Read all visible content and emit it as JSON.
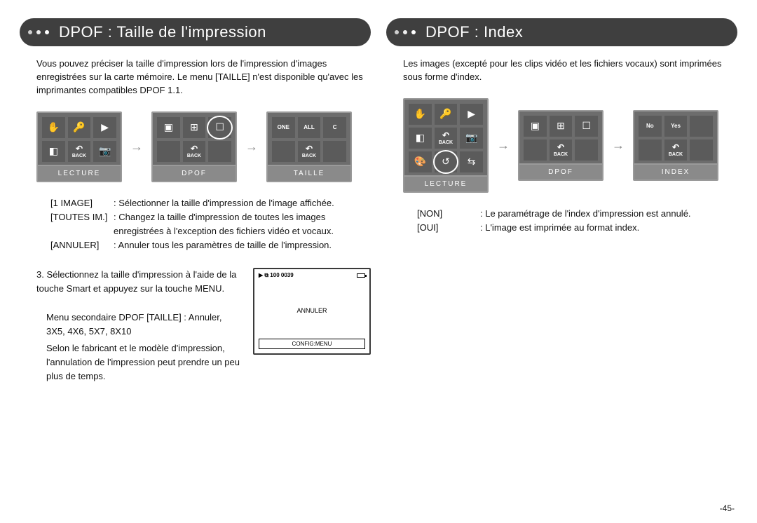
{
  "page_number": "-45-",
  "left": {
    "title": "DPOF : Taille de l'impression",
    "intro": "Vous pouvez préciser la taille d'impression lors de l'impression d'images enregistrées sur la carte mémoire. Le menu [TAILLE] n'est disponible qu'avec les imprimantes compatibles DPOF 1.1.",
    "screens": {
      "s1": {
        "label": "LECTURE",
        "cells": [
          "✋",
          "🔑",
          "▶",
          "◧",
          "BACK",
          "📷"
        ]
      },
      "s2": {
        "label": "DPOF",
        "cells": [
          "▣",
          "⊞",
          "☐",
          "",
          "BACK",
          ""
        ],
        "highlight": 2
      },
      "s3": {
        "label": "TAILLE",
        "cells": [
          "ONE",
          "ALL",
          "C",
          "",
          "BACK",
          ""
        ]
      }
    },
    "defs": [
      {
        "k": "[1 IMAGE]",
        "v": ": Sélectionner la taille d'impression de l'image affichée."
      },
      {
        "k": "[TOUTES IM.]",
        "v": ": Changez la taille d'impression de toutes les images enregistrées à l'exception des fichiers vidéo et vocaux."
      },
      {
        "k": "[ANNULER]",
        "v": ": Annuler tous les paramètres de taille de l'impression."
      }
    ],
    "step3": {
      "a": "3. Sélectionnez la taille d'impression à l'aide de la touche Smart et appuyez sur la touche MENU.",
      "b": "Menu secondaire DPOF [TAILLE] : Annuler, 3X5, 4X6, 5X7, 8X10",
      "c": "Selon le fabricant et le modèle d'impression, l'annulation de l'impression peut prendre un peu plus de temps."
    },
    "preview": {
      "top": "▶ ⧉ 100 0039",
      "mid": "ANNULER",
      "bot": "CONFIG:MENU"
    }
  },
  "right": {
    "title": "DPOF : Index",
    "intro": "Les images (excepté pour les clips vidéo et les fichiers vocaux) sont imprimées sous forme d'index.",
    "screens": {
      "s1": {
        "label": "LECTURE",
        "cells": [
          "✋",
          "🔑",
          "▶",
          "◧",
          "BACK",
          "📷",
          "🎨",
          "↺",
          "⇆"
        ],
        "rows": 3,
        "highlight": 7
      },
      "s2": {
        "label": "DPOF",
        "cells": [
          "▣",
          "⊞",
          "☐",
          "",
          "BACK",
          ""
        ]
      },
      "s3": {
        "label": "INDEX",
        "cells": [
          "No",
          "Yes",
          "",
          "",
          "BACK",
          ""
        ]
      }
    },
    "defs": [
      {
        "k": "[NON]",
        "v": ": Le paramétrage de l'index d'impression est annulé."
      },
      {
        "k": "[OUI]",
        "v": ": L'image est imprimée au format index."
      }
    ]
  }
}
